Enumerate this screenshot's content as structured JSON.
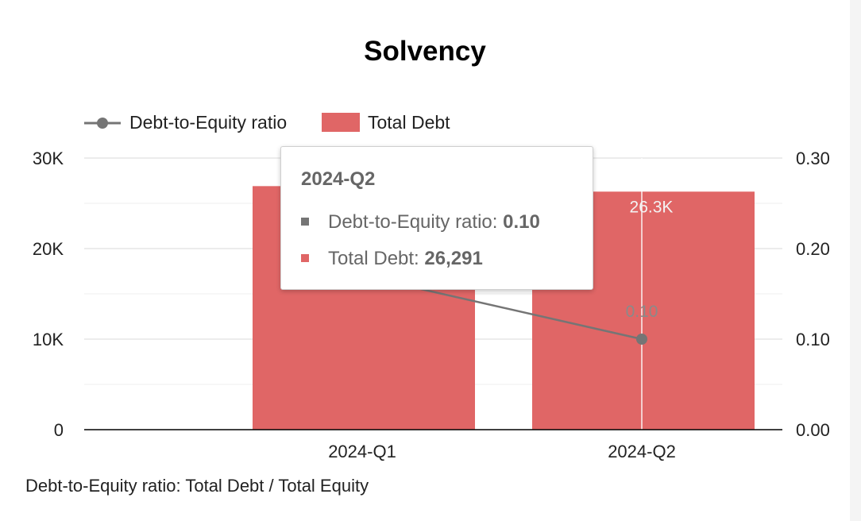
{
  "colors": {
    "bar": "#e06666",
    "line": "#757575",
    "grid": "#e6e6e6",
    "axis": "#000000"
  },
  "chart_data": {
    "type": "bar",
    "title": "Solvency",
    "categories": [
      "2024-Q1",
      "2024-Q2"
    ],
    "series": [
      {
        "name": "Total Debt",
        "type": "bar",
        "axis": "left",
        "values": [
          26900,
          26291
        ],
        "labels": [
          null,
          "26.3K"
        ]
      },
      {
        "name": "Debt-to-Equity ratio",
        "type": "line",
        "axis": "right",
        "values": [
          0.17,
          0.1
        ],
        "labels": [
          null,
          "0.10"
        ]
      }
    ],
    "y_left": {
      "ylim": [
        0,
        30000
      ],
      "ticks": [
        "0",
        "10K",
        "20K",
        "30K"
      ],
      "tick_values": [
        0,
        10000,
        20000,
        30000
      ]
    },
    "y_right": {
      "ylim": [
        0,
        0.3
      ],
      "ticks": [
        "0.00",
        "0.10",
        "0.20",
        "0.30"
      ],
      "tick_values": [
        0,
        0.1,
        0.2,
        0.3
      ]
    },
    "grid": true,
    "legend_position": "top-left",
    "footnote": "Debt-to-Equity ratio: Total Debt / Total Equity"
  },
  "tooltip": {
    "title": "2024-Q2",
    "rows": [
      {
        "label": "Debt-to-Equity ratio: ",
        "value": "0.10",
        "color": "#757575"
      },
      {
        "label": "Total Debt: ",
        "value": "26,291",
        "color": "#e06666"
      }
    ]
  }
}
